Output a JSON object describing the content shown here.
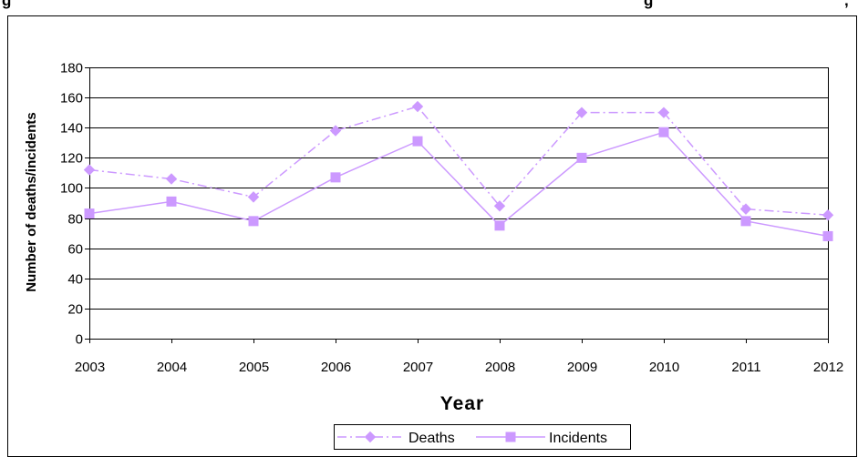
{
  "chart_data": {
    "type": "line",
    "title": "g                                                             g                      ,",
    "xlabel": "Year",
    "ylabel": "Number of deaths/incidents",
    "categories": [
      "2003",
      "2004",
      "2005",
      "2006",
      "2007",
      "2008",
      "2009",
      "2010",
      "2011",
      "2012"
    ],
    "ylim": [
      0,
      180
    ],
    "yticks": [
      0,
      20,
      40,
      60,
      80,
      100,
      120,
      140,
      160,
      180
    ],
    "grid": true,
    "legend_position": "bottom",
    "series": [
      {
        "name": "Deaths",
        "values": [
          112,
          106,
          94,
          138,
          154,
          88,
          150,
          150,
          86,
          82
        ],
        "color": "#cc99ff",
        "line_style": "dash-dot",
        "marker": "diamond"
      },
      {
        "name": "Incidents",
        "values": [
          83,
          91,
          78,
          107,
          131,
          75,
          120,
          137,
          78,
          68
        ],
        "color": "#cc99ff",
        "line_style": "solid",
        "marker": "square"
      }
    ]
  }
}
